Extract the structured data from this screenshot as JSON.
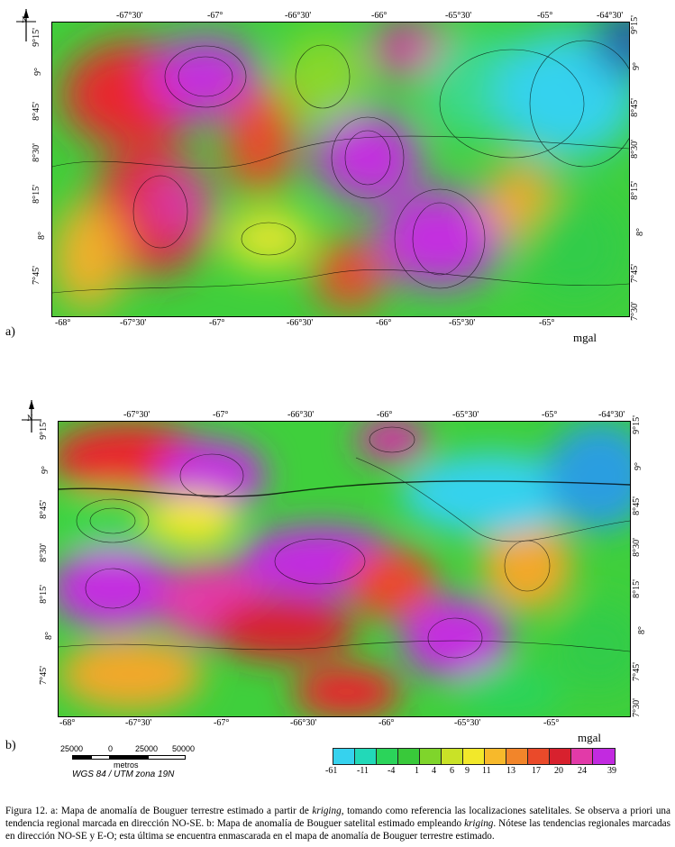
{
  "figure_a": {
    "panel_label": "a)",
    "unit_label": "mgal",
    "top_ticks": [
      "-67°30'",
      "-67°",
      "-66°30'",
      "-66°",
      "-65°30'",
      "-65°",
      "-64°30'"
    ],
    "bottom_ticks": [
      "-68°",
      "-67°30'",
      "-67°",
      "-66°30'",
      "-66°",
      "-65°30'",
      "-65°"
    ],
    "left_ticks": [
      "9°15'",
      "9°",
      "8°45'",
      "8°30'",
      "8°15'",
      "8°",
      "7°45'"
    ],
    "right_ticks": [
      "9°15'",
      "9°",
      "8°45'",
      "8°30'",
      "8°15'",
      "8°",
      "7°45'",
      "7°30'"
    ]
  },
  "figure_b": {
    "panel_label": "b)",
    "unit_label": "mgal",
    "top_ticks": [
      "-67°30'",
      "-67°",
      "-66°30'",
      "-66°",
      "-65°30'",
      "-65°",
      "-64°30'"
    ],
    "bottom_ticks": [
      "-68°",
      "-67°30'",
      "-67°",
      "-66°30'",
      "-66°",
      "-65°30'",
      "-65°"
    ],
    "left_ticks": [
      "9°15'",
      "9°",
      "8°45'",
      "8°30'",
      "8°15'",
      "8°",
      "7°45'"
    ],
    "right_ticks": [
      "9°15'",
      "9°",
      "8°45'",
      "8°30'",
      "8°15'",
      "8°",
      "7°45'",
      "7°30'"
    ]
  },
  "north_label": "N",
  "scalebar": {
    "labels": [
      "25000",
      "0",
      "25000",
      "50000"
    ],
    "unit": "metros",
    "projection": "WGS 84 / UTM zona 19N"
  },
  "colorbar": {
    "ticks": [
      "-61",
      "-11",
      "-4",
      "1",
      "4",
      "6",
      "9",
      "11",
      "13",
      "17",
      "20",
      "24",
      "39"
    ],
    "colors": [
      "#36d2ee",
      "#22d9b8",
      "#2bd45a",
      "#39c93a",
      "#7fd52b",
      "#c9e227",
      "#f2e82a",
      "#f7b92b",
      "#f2852a",
      "#ea4a2a",
      "#d8212e",
      "#e23aa8",
      "#c22ae0"
    ]
  },
  "caption": {
    "prefix": "Figura 12. a: Mapa de anomalía de Bouguer terrestre estimado a partir de ",
    "em1": "kriging",
    "mid1": ", tomando como referencia las localizaciones satelitales. Se observa a priori una tendencia regional marcada en dirección NO-SE. b: Mapa de anomalía de Bouguer satelital estimado empleando ",
    "em2": "kriging",
    "suffix": ". Nótese las tendencias regionales marcadas en dirección NO-SE y E-O; esta última se encuentra enmascarada en el mapa de anomalía de Bouguer terrestre estimado."
  }
}
